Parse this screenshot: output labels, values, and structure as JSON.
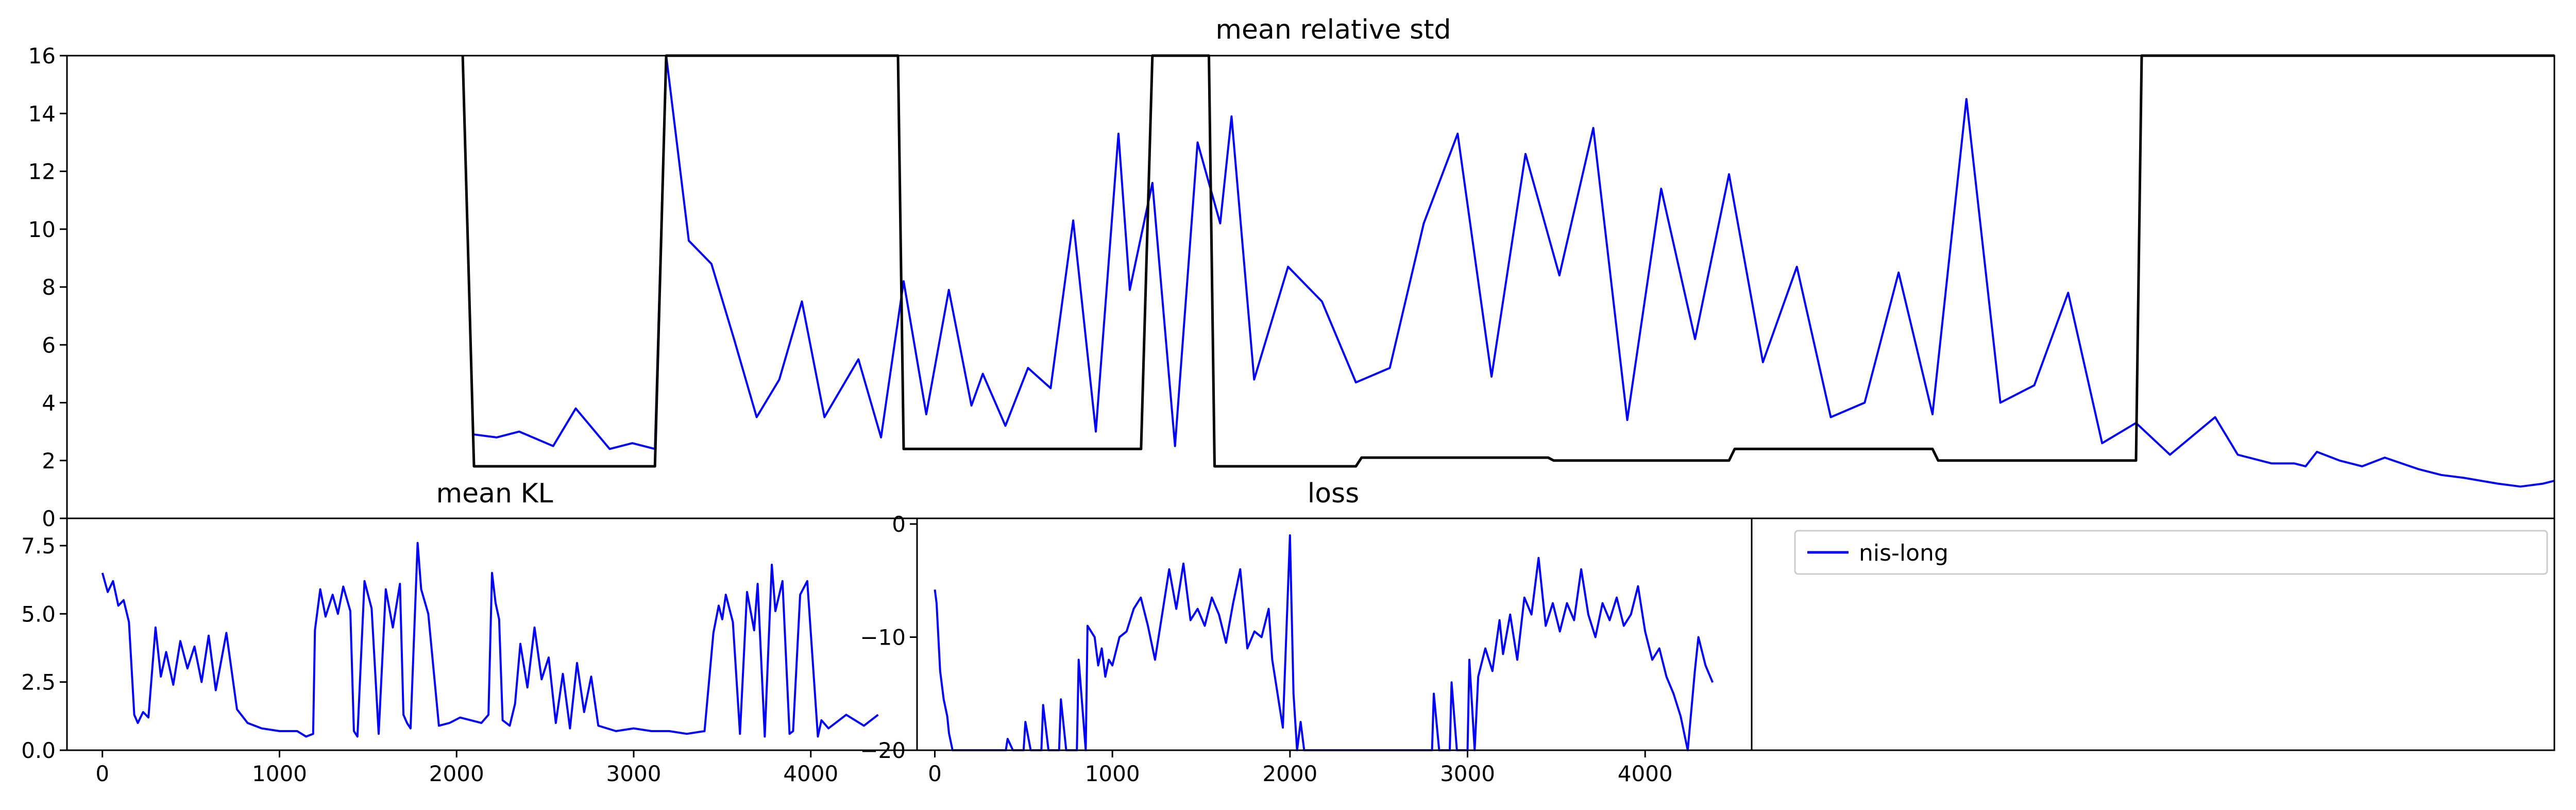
{
  "colors": {
    "series": "#0000ff",
    "reference": "#000000",
    "axes": "#000000",
    "background": "#ffffff"
  },
  "legend": {
    "entries": [
      "nis-long"
    ],
    "placement": "upper-left"
  },
  "chart_data": [
    {
      "id": "std",
      "type": "line",
      "title": "mean relative std",
      "xlim": [
        0,
        4400
      ],
      "ylim": [
        0,
        16
      ],
      "yticks": [
        0,
        2,
        4,
        6,
        8,
        10,
        12,
        14,
        16
      ],
      "xticks": [],
      "grid": false,
      "series": [
        {
          "name": "nis-long",
          "color": "#0000ff",
          "x": [
            0,
            360,
            700,
            720,
            760,
            800,
            860,
            900,
            960,
            1000,
            1040,
            1060,
            1100,
            1140,
            1180,
            1220,
            1260,
            1300,
            1340,
            1400,
            1440,
            1480,
            1520,
            1560,
            1600,
            1620,
            1660,
            1700,
            1740,
            1780,
            1820,
            1860,
            1880,
            1920,
            1960,
            2000,
            2040,
            2060,
            2100,
            2160,
            2220,
            2280,
            2340,
            2400,
            2460,
            2520,
            2580,
            2640,
            2700,
            2760,
            2820,
            2880,
            2940,
            3000,
            3060,
            3120,
            3180,
            3240,
            3300,
            3360,
            3420,
            3480,
            3540,
            3600,
            3660,
            3720,
            3800,
            3840,
            3880,
            3900,
            3940,
            3960,
            3980,
            4020,
            4060,
            4100,
            4160,
            4200,
            4240,
            4300,
            4340,
            4380,
            4400
          ],
          "y": [
            null,
            null,
            null,
            2.9,
            2.8,
            3.0,
            2.5,
            3.8,
            2.4,
            2.6,
            2.4,
            16,
            9.6,
            8.8,
            6.2,
            3.5,
            4.8,
            7.5,
            3.5,
            5.5,
            2.8,
            8.2,
            3.6,
            7.9,
            3.9,
            5.0,
            3.2,
            5.2,
            4.5,
            10.3,
            3.0,
            13.3,
            7.9,
            11.6,
            2.5,
            13.0,
            10.2,
            13.9,
            4.8,
            8.7,
            7.5,
            4.7,
            5.2,
            10.2,
            13.3,
            4.9,
            12.6,
            8.4,
            13.5,
            3.4,
            11.4,
            6.2,
            11.9,
            5.4,
            8.7,
            3.5,
            4.0,
            8.5,
            3.6,
            14.5,
            4.0,
            4.6,
            7.8,
            2.6,
            3.3,
            2.2,
            3.5,
            2.2,
            2.0,
            1.9,
            1.9,
            1.8,
            2.3,
            2.0,
            1.8,
            2.1,
            1.7,
            1.5,
            1.4,
            1.2,
            1.1,
            1.2,
            1.3
          ]
        },
        {
          "name": "",
          "color": "#000000",
          "x": [
            700,
            720,
            1040,
            1060,
            1470,
            1480,
            1900,
            1920,
            2020,
            2030,
            2280,
            2290,
            2620,
            2630,
            2940,
            2950,
            3300,
            3310,
            3660,
            3670,
            4400
          ],
          "y": [
            16,
            1.8,
            1.8,
            16,
            16,
            2.4,
            2.4,
            16,
            16,
            1.8,
            1.8,
            2.1,
            2.1,
            2.0,
            2.0,
            2.4,
            2.4,
            2.0,
            2.0,
            16,
            16
          ]
        }
      ]
    },
    {
      "id": "kl",
      "type": "line",
      "title": "mean KL",
      "xlim": [
        -200,
        4600
      ],
      "ylim": [
        0,
        8.5
      ],
      "yticks": [
        0.0,
        2.5,
        5.0,
        7.5
      ],
      "ytick_labels": [
        "0.0",
        "2.5",
        "5.0",
        "7.5"
      ],
      "xticks": [
        0,
        1000,
        2000,
        3000,
        4000
      ],
      "grid": false,
      "series": [
        {
          "name": "nis-long",
          "color": "#0000ff",
          "x": [
            0,
            30,
            60,
            90,
            120,
            150,
            180,
            200,
            230,
            260,
            300,
            330,
            360,
            400,
            440,
            480,
            520,
            560,
            600,
            640,
            700,
            760,
            820,
            900,
            1000,
            1100,
            1150,
            1190,
            1200,
            1230,
            1260,
            1300,
            1330,
            1360,
            1400,
            1420,
            1440,
            1480,
            1520,
            1560,
            1600,
            1640,
            1680,
            1700,
            1720,
            1740,
            1780,
            1800,
            1840,
            1900,
            1960,
            2020,
            2080,
            2140,
            2180,
            2200,
            2220,
            2240,
            2260,
            2300,
            2330,
            2360,
            2400,
            2440,
            2480,
            2520,
            2560,
            2600,
            2640,
            2680,
            2720,
            2760,
            2800,
            2900,
            3000,
            3100,
            3200,
            3300,
            3400,
            3450,
            3480,
            3500,
            3520,
            3560,
            3600,
            3640,
            3680,
            3700,
            3740,
            3780,
            3800,
            3840,
            3880,
            3900,
            3940,
            3980,
            4040,
            4060,
            4100,
            4200,
            4300,
            4380
          ],
          "y": [
            6.5,
            5.8,
            6.2,
            5.3,
            5.5,
            4.7,
            1.3,
            1.0,
            1.4,
            1.2,
            4.5,
            2.7,
            3.6,
            2.4,
            4.0,
            3.0,
            3.8,
            2.5,
            4.2,
            2.2,
            4.3,
            1.5,
            1.0,
            0.8,
            0.7,
            0.7,
            0.5,
            0.6,
            4.4,
            5.9,
            4.9,
            5.7,
            5.0,
            6.0,
            5.1,
            0.7,
            0.5,
            6.2,
            5.2,
            0.6,
            5.9,
            4.5,
            6.1,
            1.3,
            1.0,
            0.8,
            7.6,
            5.9,
            5.0,
            0.9,
            1.0,
            1.2,
            1.1,
            1.0,
            1.3,
            6.5,
            5.4,
            4.8,
            1.1,
            0.9,
            1.7,
            3.9,
            2.3,
            4.5,
            2.6,
            3.4,
            1.0,
            2.8,
            0.8,
            3.2,
            1.4,
            2.7,
            0.9,
            0.7,
            0.8,
            0.7,
            0.7,
            0.6,
            0.7,
            4.3,
            5.3,
            4.8,
            5.7,
            4.7,
            0.6,
            5.8,
            4.4,
            6.1,
            0.5,
            6.8,
            5.1,
            6.2,
            0.6,
            0.7,
            5.7,
            6.2,
            0.5,
            1.1,
            0.8,
            1.3,
            0.9,
            1.3
          ]
        }
      ]
    },
    {
      "id": "loss",
      "type": "line",
      "title": "loss",
      "xlim": [
        -100,
        4600
      ],
      "ylim": [
        -20,
        0.5
      ],
      "yticks": [
        -20,
        -10,
        0
      ],
      "ytick_labels": [
        "−20",
        "−10",
        "0"
      ],
      "xticks": [
        0,
        1000,
        2000,
        3000,
        4000
      ],
      "grid": false,
      "series": [
        {
          "name": "nis-long",
          "color": "#0000ff",
          "x": [
            0,
            10,
            30,
            50,
            70,
            80,
            100,
            400,
            410,
            440,
            500,
            510,
            540,
            600,
            610,
            640,
            700,
            710,
            740,
            800,
            810,
            850,
            860,
            900,
            920,
            940,
            960,
            980,
            1000,
            1040,
            1080,
            1120,
            1160,
            1200,
            1240,
            1280,
            1320,
            1360,
            1400,
            1440,
            1480,
            1520,
            1560,
            1600,
            1640,
            1680,
            1720,
            1760,
            1800,
            1840,
            1880,
            1900,
            1920,
            1940,
            1960,
            2000,
            2020,
            2040,
            2060,
            2080,
            2100,
            2800,
            2810,
            2840,
            2900,
            2910,
            2940,
            3000,
            3010,
            3040,
            3060,
            3100,
            3140,
            3180,
            3200,
            3240,
            3280,
            3320,
            3360,
            3400,
            3440,
            3480,
            3520,
            3560,
            3600,
            3640,
            3680,
            3720,
            3760,
            3800,
            3840,
            3880,
            3920,
            3960,
            4000,
            4040,
            4080,
            4120,
            4160,
            4200,
            4240,
            4280,
            4300,
            4340,
            4380
          ],
          "y": [
            -5.8,
            -7.0,
            -13.0,
            -15.5,
            -17.0,
            -18.5,
            -20.5,
            -20.5,
            -19.0,
            -20.5,
            -20.5,
            -17.5,
            -20.5,
            -20.5,
            -16.0,
            -20.5,
            -20.5,
            -15.5,
            -20.5,
            -20.5,
            -12.0,
            -20.5,
            -9.0,
            -10.0,
            -12.5,
            -11.0,
            -13.5,
            -12.0,
            -12.5,
            -10.0,
            -9.5,
            -7.5,
            -6.5,
            -9.0,
            -12.0,
            -8.0,
            -4.0,
            -7.5,
            -3.5,
            -8.5,
            -7.5,
            -9.0,
            -6.5,
            -8.0,
            -10.5,
            -7.0,
            -4.0,
            -11.0,
            -9.5,
            -10.0,
            -7.5,
            -12.0,
            -14.0,
            -16.0,
            -18.0,
            -1.0,
            -15.0,
            -20.5,
            -17.5,
            -20.5,
            -20.5,
            -20.5,
            -15.0,
            -20.5,
            -20.5,
            -14.0,
            -20.5,
            -20.5,
            -12.0,
            -20.5,
            -13.5,
            -11.0,
            -13.0,
            -8.5,
            -11.5,
            -8.0,
            -12.0,
            -6.5,
            -8.0,
            -3.0,
            -9.0,
            -7.0,
            -9.5,
            -7.0,
            -8.5,
            -4.0,
            -8.0,
            -10.0,
            -7.0,
            -8.5,
            -6.5,
            -9.0,
            -8.0,
            -5.5,
            -9.5,
            -12.0,
            -11.0,
            -13.5,
            -15.0,
            -17.0,
            -20.5,
            -13.0,
            -10.0,
            -12.5,
            -14.0
          ]
        }
      ]
    }
  ]
}
